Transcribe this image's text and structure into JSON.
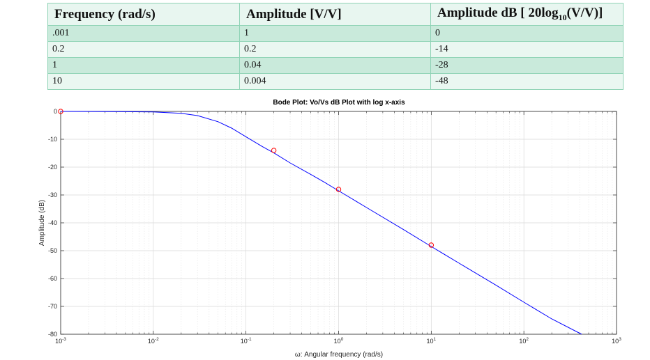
{
  "table": {
    "headers": {
      "frequency": "Frequency (rad/s)",
      "amplitude": "Amplitude [V/V]",
      "db_prefix": "Amplitude dB [ 20log",
      "db_sub": "10",
      "db_suffix": "(V/V)]"
    },
    "rows": [
      {
        "frequency": ".001",
        "amplitude": "1",
        "db": "0"
      },
      {
        "frequency": "0.2",
        "amplitude": "0.2",
        "db": "-14"
      },
      {
        "frequency": "1",
        "amplitude": "0.04",
        "db": "-28"
      },
      {
        "frequency": "10",
        "amplitude": "0.004",
        "db": "-48"
      }
    ]
  },
  "chart_data": {
    "type": "line",
    "title": "Bode Plot: Vo/Vs dB Plot with log x-axis",
    "xlabel": "ω: Angular frequency (rad/s)",
    "ylabel": "Amplitude (dB)",
    "xscale": "log",
    "xlim": [
      0.001,
      1000
    ],
    "ylim": [
      -80,
      0
    ],
    "grid": true,
    "x_ticks": [
      {
        "value": 0.001,
        "base": "10",
        "exp": "-3"
      },
      {
        "value": 0.01,
        "base": "10",
        "exp": "-2"
      },
      {
        "value": 0.1,
        "base": "10",
        "exp": "-1"
      },
      {
        "value": 1,
        "base": "10",
        "exp": "0"
      },
      {
        "value": 10,
        "base": "10",
        "exp": "1"
      },
      {
        "value": 100,
        "base": "10",
        "exp": "2"
      },
      {
        "value": 1000,
        "base": "10",
        "exp": "3"
      }
    ],
    "y_ticks": [
      0,
      -10,
      -20,
      -30,
      -40,
      -50,
      -60,
      -70,
      -80
    ],
    "series": [
      {
        "style": "line",
        "color": "#0000ff",
        "x": [
          0.001,
          0.005,
          0.01,
          0.02,
          0.03,
          0.05,
          0.07,
          0.1,
          0.15,
          0.2,
          0.3,
          0.5,
          0.7,
          1,
          2,
          5,
          10,
          20,
          50,
          100,
          200,
          420
        ],
        "y": [
          0,
          -0.1,
          -0.2,
          -0.7,
          -1.5,
          -3.7,
          -6,
          -9.1,
          -12.6,
          -14.9,
          -18.5,
          -22.6,
          -25.4,
          -28.5,
          -34.5,
          -42.4,
          -48.5,
          -54.5,
          -62.4,
          -68.5,
          -74.5,
          -80
        ]
      },
      {
        "style": "markers",
        "color": "#ff0000",
        "x": [
          0.001,
          0.2,
          1,
          10
        ],
        "y": [
          0,
          -14,
          -28,
          -48
        ]
      }
    ]
  }
}
